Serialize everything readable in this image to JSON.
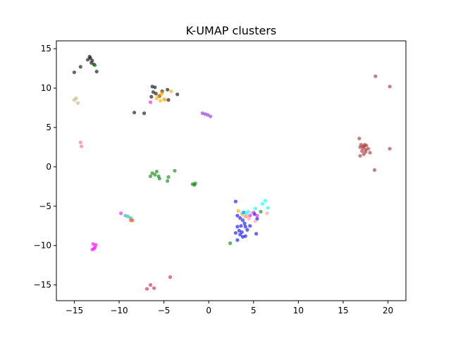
{
  "chart_data": {
    "type": "scatter",
    "title": "K-UMAP clusters",
    "xlabel": "",
    "ylabel": "",
    "xlim": [
      -17,
      22
    ],
    "ylim": [
      -17,
      16
    ],
    "xticks": [
      -15,
      -10,
      -5,
      0,
      5,
      10,
      15,
      20
    ],
    "yticks": [
      -15,
      -10,
      -5,
      0,
      5,
      10,
      15
    ],
    "grid": false,
    "point_alpha": 0.6,
    "series": [
      {
        "color": "#000000",
        "points": [
          [
            -13.3,
            14.0
          ],
          [
            -13.2,
            13.8
          ],
          [
            -13.0,
            13.5
          ],
          [
            -13.1,
            13.2
          ],
          [
            -12.8,
            13.0
          ],
          [
            -13.5,
            13.6
          ],
          [
            -14.3,
            12.7
          ],
          [
            -15.0,
            12.0
          ],
          [
            -12.5,
            12.1
          ],
          [
            -6.3,
            10.2
          ],
          [
            -6.0,
            10.1
          ],
          [
            -6.2,
            9.5
          ],
          [
            -5.9,
            9.3
          ],
          [
            -6.4,
            8.9
          ],
          [
            -5.5,
            9.0
          ],
          [
            -4.6,
            9.8
          ],
          [
            -5.2,
            9.6
          ],
          [
            -3.5,
            9.2
          ],
          [
            -4.5,
            8.5
          ],
          [
            -8.3,
            6.9
          ],
          [
            -7.2,
            6.8
          ]
        ]
      },
      {
        "color": "#008000",
        "points": [
          [
            -12.7,
            12.9
          ],
          [
            -6.0,
            -1.0
          ],
          [
            -5.6,
            -1.2
          ],
          [
            -5.8,
            -0.6
          ],
          [
            -6.3,
            -0.8
          ],
          [
            -6.5,
            -1.2
          ],
          [
            -5.5,
            -1.5
          ],
          [
            -4.5,
            -1.3
          ],
          [
            -3.8,
            -0.5
          ],
          [
            -4.6,
            -1.8
          ],
          [
            -1.8,
            -2.2
          ],
          [
            -1.6,
            -2.3
          ],
          [
            -1.5,
            -2.1
          ],
          [
            2.4,
            -9.7
          ],
          [
            5.8,
            -5.7
          ]
        ]
      },
      {
        "color": "#ffa500",
        "points": [
          [
            -5.6,
            9.0
          ],
          [
            -5.3,
            9.2
          ],
          [
            -5.0,
            8.6
          ],
          [
            -5.4,
            8.4
          ],
          [
            -4.9,
            8.5
          ],
          [
            -4.2,
            9.6
          ],
          [
            -5.8,
            8.7
          ],
          [
            -5.2,
            9.4
          ],
          [
            3.3,
            -5.6
          ],
          [
            3.7,
            -6.0
          ],
          [
            4.2,
            -6.3
          ]
        ]
      },
      {
        "color": "#ff00ff",
        "points": [
          [
            -6.5,
            8.2
          ],
          [
            -12.9,
            -9.8
          ],
          [
            -12.7,
            -10.2
          ],
          [
            -13.0,
            -10.5
          ],
          [
            -12.8,
            -10.4
          ],
          [
            -12.6,
            -9.9
          ],
          [
            -9.8,
            -5.9
          ],
          [
            5.0,
            -5.8
          ],
          [
            5.4,
            -6.2
          ],
          [
            4.6,
            -6.2
          ]
        ]
      },
      {
        "color": "#bdb76b",
        "points": [
          [
            -15.0,
            8.5
          ],
          [
            -14.8,
            8.7
          ],
          [
            -14.6,
            8.1
          ]
        ]
      },
      {
        "color": "#8a2be2",
        "points": [
          [
            -0.7,
            6.8
          ],
          [
            -0.4,
            6.7
          ],
          [
            0.2,
            6.4
          ],
          [
            -0.1,
            6.6
          ]
        ]
      },
      {
        "color": "#ff6666",
        "points": [
          [
            -14.3,
            3.1
          ],
          [
            -14.2,
            2.6
          ]
        ]
      },
      {
        "color": "#a52a2a",
        "points": [
          [
            16.8,
            3.6
          ],
          [
            17.0,
            2.8
          ],
          [
            17.3,
            2.6
          ],
          [
            17.4,
            2.8
          ],
          [
            17.2,
            2.4
          ],
          [
            17.5,
            2.2
          ],
          [
            17.8,
            2.3
          ],
          [
            17.6,
            2.7
          ],
          [
            16.9,
            2.5
          ],
          [
            17.1,
            2.0
          ],
          [
            17.5,
            1.9
          ],
          [
            18.0,
            1.8
          ],
          [
            16.9,
            1.4
          ],
          [
            17.3,
            1.6
          ],
          [
            18.6,
            11.5
          ],
          [
            20.2,
            10.2
          ],
          [
            20.2,
            2.3
          ],
          [
            18.5,
            -0.4
          ]
        ]
      },
      {
        "color": "#0000ff",
        "points": [
          [
            3.0,
            -4.4
          ],
          [
            3.2,
            -6.2
          ],
          [
            3.5,
            -6.5
          ],
          [
            3.8,
            -6.8
          ],
          [
            4.0,
            -7.2
          ],
          [
            3.6,
            -7.5
          ],
          [
            3.2,
            -7.6
          ],
          [
            3.4,
            -8.1
          ],
          [
            3.7,
            -8.3
          ],
          [
            4.3,
            -8.0
          ],
          [
            4.6,
            -7.5
          ],
          [
            4.1,
            -7.6
          ],
          [
            3.0,
            -8.4
          ],
          [
            3.5,
            -8.6
          ],
          [
            3.2,
            -9.3
          ],
          [
            3.8,
            -8.9
          ],
          [
            4.1,
            -8.8
          ],
          [
            5.3,
            -8.5
          ],
          [
            5.4,
            -6.6
          ],
          [
            5.1,
            -6.0
          ],
          [
            3.9,
            -5.8
          ]
        ]
      },
      {
        "color": "#00ffff",
        "points": [
          [
            3.8,
            -5.8
          ],
          [
            4.2,
            -5.9
          ],
          [
            5.2,
            -5.3
          ],
          [
            6.0,
            -4.7
          ],
          [
            6.3,
            -4.3
          ],
          [
            6.6,
            -5.2
          ],
          [
            4.4,
            -5.7
          ]
        ]
      },
      {
        "color": "#ff9999",
        "points": [
          [
            4.0,
            -6.3
          ],
          [
            4.5,
            -6.6
          ],
          [
            5.2,
            -6.9
          ],
          [
            6.5,
            -5.9
          ],
          [
            4.8,
            -5.9
          ]
        ]
      },
      {
        "color": "#ff4500",
        "points": [
          [
            -8.7,
            -6.8
          ],
          [
            -8.5,
            -6.8
          ]
        ]
      },
      {
        "color": "#20b2aa",
        "points": [
          [
            -9.3,
            -6.2
          ],
          [
            -9.0,
            -6.3
          ],
          [
            -8.7,
            -6.5
          ]
        ]
      },
      {
        "color": "#dc143c",
        "points": [
          [
            -6.5,
            -15.0
          ],
          [
            -6.9,
            -15.5
          ],
          [
            -6.1,
            -15.4
          ],
          [
            -4.3,
            -14.0
          ]
        ]
      }
    ]
  }
}
